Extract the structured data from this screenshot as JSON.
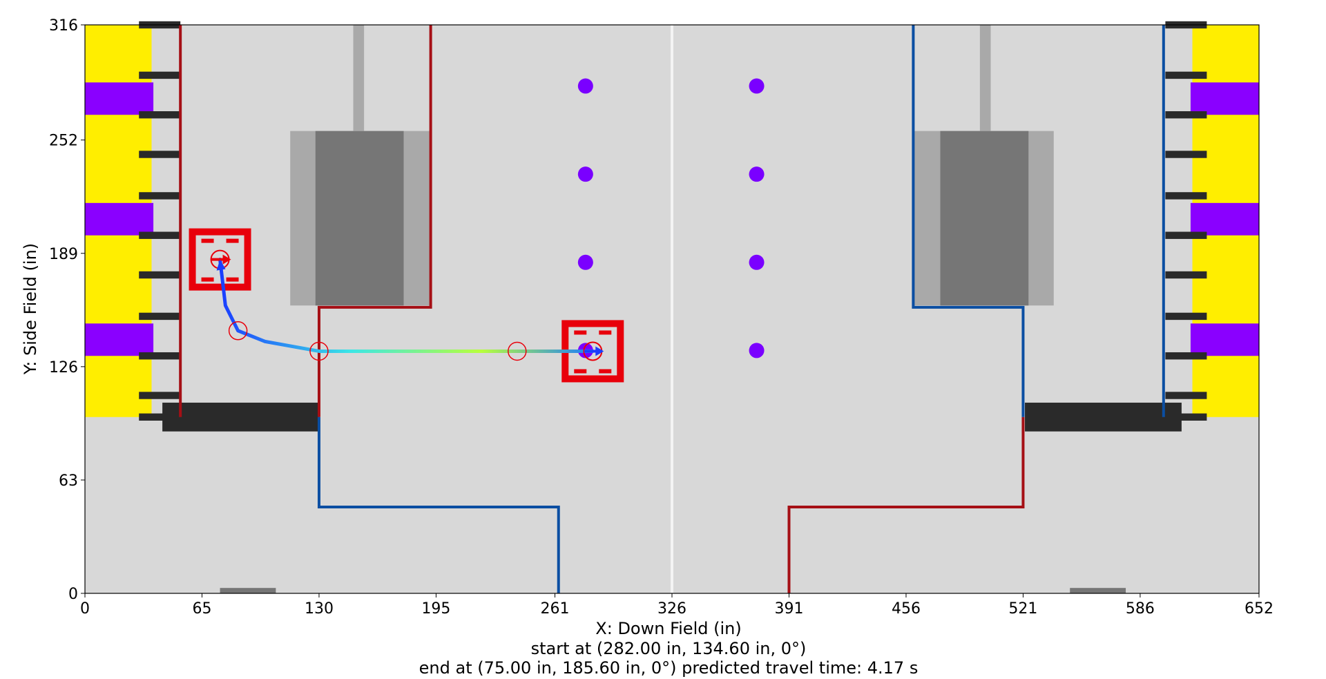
{
  "chart_data": {
    "type": "scatter",
    "xlabel": "X: Down Field (in)",
    "ylabel": "Y: Side Field (in)",
    "xlim": [
      0,
      652
    ],
    "ylim": [
      0,
      316
    ],
    "x_ticks": [
      0,
      65,
      130,
      195,
      261,
      326,
      391,
      456,
      521,
      586,
      652
    ],
    "y_ticks": [
      0,
      63,
      126,
      189,
      252,
      316
    ],
    "footer_lines": [
      "start at (282.00 in, 134.60 in, 0°)",
      "end at (75.00 in, 185.60 in, 0°) predicted travel time: 4.17 s"
    ],
    "start_pose": {
      "x": 282.0,
      "y": 134.6,
      "heading_deg": 0
    },
    "end_pose": {
      "x": 75.0,
      "y": 185.6,
      "heading_deg": 0
    },
    "predicted_travel_time_s": 4.17,
    "waypoints": [
      {
        "x": 75,
        "y": 185.6
      },
      {
        "x": 85,
        "y": 146
      },
      {
        "x": 130,
        "y": 134.6
      },
      {
        "x": 240,
        "y": 134.6
      },
      {
        "x": 282,
        "y": 134.6
      }
    ],
    "path": [
      {
        "x": 282,
        "y": 134.6
      },
      {
        "x": 240,
        "y": 134.6
      },
      {
        "x": 130,
        "y": 134.6
      },
      {
        "x": 100,
        "y": 140
      },
      {
        "x": 85,
        "y": 146
      },
      {
        "x": 78,
        "y": 160
      },
      {
        "x": 75,
        "y": 185.6
      }
    ],
    "game_pieces": [
      {
        "x": 278,
        "y": 282
      },
      {
        "x": 278,
        "y": 233
      },
      {
        "x": 278,
        "y": 184
      },
      {
        "x": 278,
        "y": 135
      },
      {
        "x": 373,
        "y": 282
      },
      {
        "x": 373,
        "y": 233
      },
      {
        "x": 373,
        "y": 184
      },
      {
        "x": 373,
        "y": 135
      }
    ],
    "colors": {
      "field": "#d8d8d8",
      "red_alliance": "#a50f15",
      "blue_alliance": "#0b4ea2",
      "robot_red": "#e8000b",
      "game_piece": "#7a00ff",
      "wall_yellow": "#ffee00",
      "wall_purple": "#8a00ff",
      "stage_dark": "#767676",
      "stage_light": "#a9a9a9",
      "barrier": "#2a2a2a",
      "center_line": "#f4f4f4",
      "path_start": "#1a3cff",
      "path_mid": "#3ce6e6",
      "path_end": "#b8ff3c"
    }
  }
}
